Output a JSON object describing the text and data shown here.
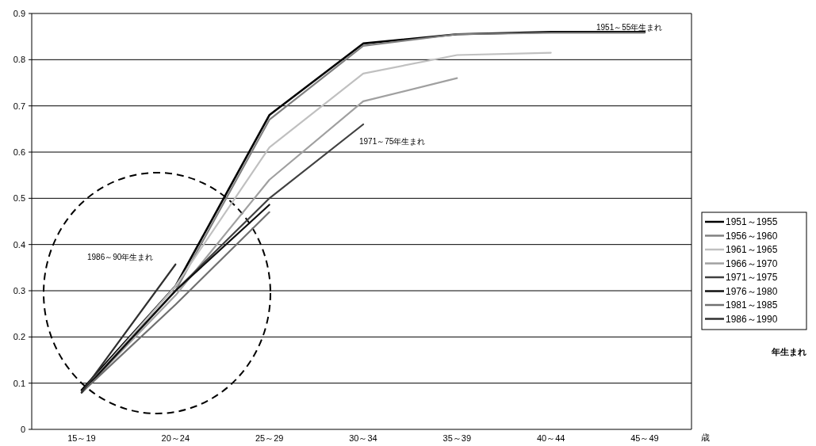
{
  "chart_data": {
    "type": "line",
    "categories": [
      "15～19",
      "20～24",
      "25～29",
      "30～34",
      "35～39",
      "40～44",
      "45～49"
    ],
    "xlabel": "歳",
    "ylim": [
      0,
      0.9
    ],
    "yticks": [
      {
        "value": 0,
        "label": "0"
      },
      0.1,
      0.2,
      0.3,
      0.4,
      0.5,
      0.6,
      0.7,
      0.8,
      0.9
    ],
    "grid": "y",
    "legend": "right",
    "legend_title": "年生まれ",
    "marker": "none",
    "series": [
      {
        "name": "1951～1955",
        "color": "#000000",
        "values": [
          0.085,
          0.31,
          0.68,
          0.835,
          0.855,
          0.86,
          0.86
        ]
      },
      {
        "name": "1956～1960",
        "color": "#808080",
        "values": [
          0.08,
          0.3,
          0.67,
          0.83,
          0.855,
          0.858,
          0.858
        ]
      },
      {
        "name": "1961～1965",
        "color": "#c0c0c0",
        "values": [
          0.08,
          0.31,
          0.61,
          0.77,
          0.81,
          0.815,
          null
        ]
      },
      {
        "name": "1966～1970",
        "color": "#a0a0a0",
        "values": [
          0.08,
          0.29,
          0.54,
          0.71,
          0.76,
          null,
          null
        ]
      },
      {
        "name": "1971～1975",
        "color": "#404040",
        "values": [
          0.08,
          0.3,
          0.5,
          0.66,
          null,
          null,
          null
        ]
      },
      {
        "name": "1976～1980",
        "color": "#101010",
        "values": [
          0.08,
          0.3,
          0.486,
          null,
          null,
          null,
          null
        ]
      },
      {
        "name": "1981～1985",
        "color": "#707070",
        "values": [
          0.08,
          0.27,
          0.47,
          null,
          null,
          null,
          null
        ]
      },
      {
        "name": "1986～1990",
        "color": "#303030",
        "values": [
          0.08,
          0.357,
          null,
          null,
          null,
          null,
          null
        ]
      }
    ],
    "annotations": [
      "1951～55年生まれ",
      "1971～75年生まれ",
      "1986～90年生まれ"
    ]
  }
}
